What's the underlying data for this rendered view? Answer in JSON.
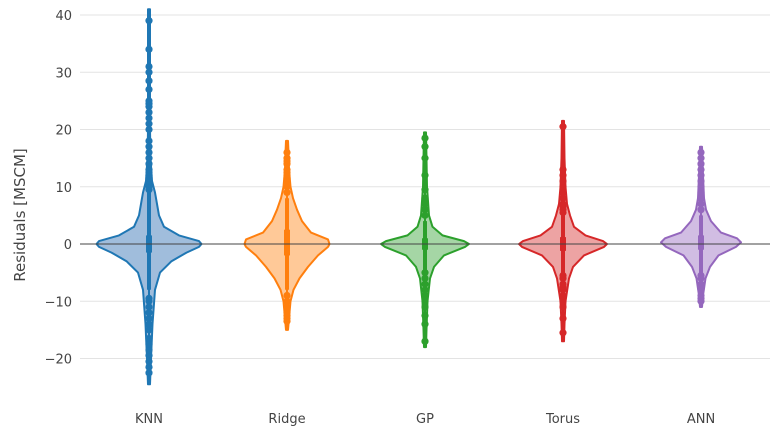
{
  "chart_data": {
    "type": "violin",
    "title": "",
    "xlabel": "",
    "ylabel": "Residuals [MSCM]",
    "ylim": [
      -27.5,
      42
    ],
    "yticks": [
      -20,
      -10,
      0,
      10,
      20,
      30,
      40
    ],
    "ytick_labels": [
      "−20",
      "−10",
      "0",
      "10",
      "20",
      "30",
      "40"
    ],
    "grid": true,
    "zero_line": true,
    "categories": [
      "KNN",
      "Ridge",
      "GP",
      "Torus",
      "ANN"
    ],
    "series": [
      {
        "color": "#1f77b4",
        "fill": "#8fb1d6",
        "min": -24.5,
        "max": 41,
        "profile": [
          [
            -24.5,
            0.02
          ],
          [
            -20,
            0.04
          ],
          [
            -14,
            0.07
          ],
          [
            -8,
            0.12
          ],
          [
            -5,
            0.22
          ],
          [
            -3,
            0.45
          ],
          [
            -1.5,
            0.75
          ],
          [
            -0.5,
            1.0
          ],
          [
            0,
            1.05
          ],
          [
            0.5,
            1.0
          ],
          [
            1.5,
            0.6
          ],
          [
            3,
            0.3
          ],
          [
            5,
            0.2
          ],
          [
            7,
            0.16
          ],
          [
            9,
            0.12
          ],
          [
            11,
            0.06
          ],
          [
            15,
            0.03
          ],
          [
            20,
            0.02
          ],
          [
            41,
            0.02
          ]
        ],
        "box": {
          "q1": -1.5,
          "median": 0,
          "q3": 1.5,
          "whisker_low": -8,
          "whisker_high": 9
        },
        "outliers": [
          -22.5,
          -21.5,
          -20.5,
          -19.5,
          -18.5,
          -17.5,
          -16.5,
          -15,
          -14,
          -13,
          -12,
          -11,
          -10,
          -9.5,
          9.5,
          10,
          10.5,
          11,
          11.5,
          12,
          12.5,
          13,
          14,
          15,
          16,
          17,
          18,
          20,
          21,
          22,
          23,
          24,
          24.5,
          25,
          27,
          28.5,
          30,
          31,
          34,
          39
        ]
      },
      {
        "color": "#ff7f0e",
        "fill": "#ffbf86",
        "min": -15,
        "max": 18,
        "profile": [
          [
            -15,
            0.02
          ],
          [
            -13,
            0.04
          ],
          [
            -10,
            0.07
          ],
          [
            -8,
            0.13
          ],
          [
            -6,
            0.25
          ],
          [
            -4,
            0.42
          ],
          [
            -2,
            0.62
          ],
          [
            -0.5,
            0.82
          ],
          [
            0,
            0.85
          ],
          [
            0.8,
            0.82
          ],
          [
            2,
            0.48
          ],
          [
            4,
            0.3
          ],
          [
            6,
            0.2
          ],
          [
            8,
            0.12
          ],
          [
            10,
            0.07
          ],
          [
            13,
            0.04
          ],
          [
            16,
            0.03
          ],
          [
            18,
            0.02
          ]
        ],
        "box": {
          "q1": -2,
          "median": 0.3,
          "q3": 2.5,
          "whisker_low": -8,
          "whisker_high": 8
        },
        "outliers": [
          -13.5,
          -13,
          -12.5,
          -12,
          -11,
          -10,
          -9,
          9,
          10,
          11,
          11.5,
          12,
          12.5,
          13,
          14,
          14.5,
          15,
          16
        ]
      },
      {
        "color": "#2ca02c",
        "fill": "#95cf95",
        "min": -18,
        "max": 19.5,
        "profile": [
          [
            -18,
            0.02
          ],
          [
            -15,
            0.03
          ],
          [
            -10,
            0.05
          ],
          [
            -6,
            0.1
          ],
          [
            -4,
            0.18
          ],
          [
            -2,
            0.38
          ],
          [
            -0.5,
            0.8
          ],
          [
            0,
            0.88
          ],
          [
            0.5,
            0.78
          ],
          [
            1.5,
            0.35
          ],
          [
            3,
            0.15
          ],
          [
            5,
            0.08
          ],
          [
            10,
            0.04
          ],
          [
            15,
            0.03
          ],
          [
            19.5,
            0.02
          ]
        ],
        "box": {
          "q1": -1,
          "median": 0,
          "q3": 1,
          "whisker_low": -4.5,
          "whisker_high": 4
        },
        "outliers": [
          -17,
          -14,
          -12.5,
          -11,
          -10,
          -9,
          -8,
          -7,
          -6,
          -5,
          5,
          6,
          7,
          8,
          9.5,
          12,
          15,
          17,
          18.5
        ]
      },
      {
        "color": "#d62728",
        "fill": "#ea9393",
        "min": -17,
        "max": 21.5,
        "profile": [
          [
            -17,
            0.02
          ],
          [
            -14,
            0.03
          ],
          [
            -10,
            0.05
          ],
          [
            -6,
            0.12
          ],
          [
            -4,
            0.2
          ],
          [
            -2,
            0.42
          ],
          [
            -0.5,
            0.82
          ],
          [
            0,
            0.88
          ],
          [
            0.5,
            0.8
          ],
          [
            1.5,
            0.45
          ],
          [
            3,
            0.22
          ],
          [
            5,
            0.14
          ],
          [
            7,
            0.08
          ],
          [
            10,
            0.05
          ],
          [
            15,
            0.03
          ],
          [
            21.5,
            0.02
          ]
        ],
        "box": {
          "q1": -1.2,
          "median": 0,
          "q3": 1.2,
          "whisker_low": -5,
          "whisker_high": 5
        },
        "outliers": [
          -15.5,
          -13,
          -11,
          -10,
          -9,
          -8,
          -7.5,
          -7,
          -6,
          -5.5,
          5.5,
          6,
          6.5,
          7,
          8,
          9,
          10,
          11,
          12,
          13,
          20.5
        ]
      },
      {
        "color": "#9467bd",
        "fill": "#c9b2de",
        "min": -11,
        "max": 17,
        "profile": [
          [
            -11,
            0.02
          ],
          [
            -9,
            0.04
          ],
          [
            -6,
            0.09
          ],
          [
            -4,
            0.18
          ],
          [
            -2,
            0.35
          ],
          [
            -0.5,
            0.7
          ],
          [
            0.3,
            0.8
          ],
          [
            1,
            0.72
          ],
          [
            2,
            0.4
          ],
          [
            4,
            0.2
          ],
          [
            6,
            0.1
          ],
          [
            8,
            0.06
          ],
          [
            12,
            0.04
          ],
          [
            17,
            0.02
          ]
        ],
        "box": {
          "q1": -1,
          "median": 0.3,
          "q3": 1.5,
          "whisker_low": -5,
          "whisker_high": 5
        },
        "outliers": [
          -10,
          -9.5,
          -9,
          -8,
          -7,
          -6,
          -5.5,
          6,
          7,
          8,
          9,
          10,
          11,
          12,
          13,
          14,
          15,
          16
        ]
      }
    ]
  }
}
